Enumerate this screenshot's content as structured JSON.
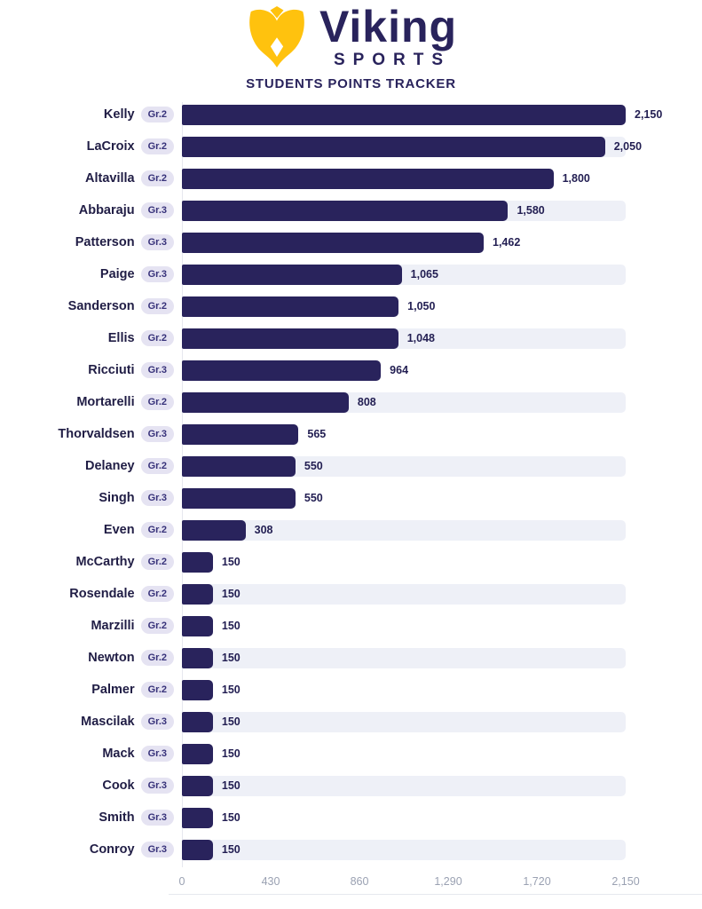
{
  "header": {
    "brand_name": "Viking",
    "brand_sub": "SPORTS",
    "title": "STUDENTS POINTS TRACKER"
  },
  "colors": {
    "bar": "#29235c",
    "track": "#eef0f7",
    "badge_bg": "#e5e3f2",
    "badge_text": "#37327a",
    "name_text": "#201d45",
    "value_text": "#221e52",
    "brand_navy": "#29235c",
    "brand_yellow": "#ffc20e",
    "axis_text": "#9aa1b2",
    "axis_line": "#e6e8ef"
  },
  "chart_data": {
    "type": "bar",
    "orientation": "horizontal",
    "title": "STUDENTS POINTS TRACKER",
    "xlim": [
      0,
      2150
    ],
    "grid": false,
    "legend": "none",
    "bar_color": "#29235c",
    "xticks": [
      {
        "label": "0",
        "value": 0
      },
      {
        "label": "430",
        "value": 430
      },
      {
        "label": "860",
        "value": 860
      },
      {
        "label": "1,290",
        "value": 1290
      },
      {
        "label": "1,720",
        "value": 1720
      },
      {
        "label": "2,150",
        "value": 2150
      }
    ],
    "students": [
      {
        "name": "Kelly",
        "grade": "Gr.2",
        "value": 2150,
        "label": "2,150"
      },
      {
        "name": "LaCroix",
        "grade": "Gr.2",
        "value": 2050,
        "label": "2,050"
      },
      {
        "name": "Altavilla",
        "grade": "Gr.2",
        "value": 1800,
        "label": "1,800"
      },
      {
        "name": "Abbaraju",
        "grade": "Gr.3",
        "value": 1580,
        "label": "1,580"
      },
      {
        "name": "Patterson",
        "grade": "Gr.3",
        "value": 1462,
        "label": "1,462"
      },
      {
        "name": "Paige",
        "grade": "Gr.3",
        "value": 1065,
        "label": "1,065"
      },
      {
        "name": "Sanderson",
        "grade": "Gr.2",
        "value": 1050,
        "label": "1,050"
      },
      {
        "name": "Ellis",
        "grade": "Gr.2",
        "value": 1048,
        "label": "1,048"
      },
      {
        "name": "Ricciuti",
        "grade": "Gr.3",
        "value": 964,
        "label": "964"
      },
      {
        "name": "Mortarelli",
        "grade": "Gr.2",
        "value": 808,
        "label": "808"
      },
      {
        "name": "Thorvaldsen",
        "grade": "Gr.3",
        "value": 565,
        "label": "565"
      },
      {
        "name": "Delaney",
        "grade": "Gr.2",
        "value": 550,
        "label": "550"
      },
      {
        "name": "Singh",
        "grade": "Gr.3",
        "value": 550,
        "label": "550"
      },
      {
        "name": "Even",
        "grade": "Gr.2",
        "value": 308,
        "label": "308"
      },
      {
        "name": "McCarthy",
        "grade": "Gr.2",
        "value": 150,
        "label": "150"
      },
      {
        "name": "Rosendale",
        "grade": "Gr.2",
        "value": 150,
        "label": "150"
      },
      {
        "name": "Marzilli",
        "grade": "Gr.2",
        "value": 150,
        "label": "150"
      },
      {
        "name": "Newton",
        "grade": "Gr.2",
        "value": 150,
        "label": "150"
      },
      {
        "name": "Palmer",
        "grade": "Gr.2",
        "value": 150,
        "label": "150"
      },
      {
        "name": "Mascilak",
        "grade": "Gr.3",
        "value": 150,
        "label": "150"
      },
      {
        "name": "Mack",
        "grade": "Gr.3",
        "value": 150,
        "label": "150"
      },
      {
        "name": "Cook",
        "grade": "Gr.3",
        "value": 150,
        "label": "150"
      },
      {
        "name": "Smith",
        "grade": "Gr.3",
        "value": 150,
        "label": "150"
      },
      {
        "name": "Conroy",
        "grade": "Gr.3",
        "value": 150,
        "label": "150"
      }
    ]
  }
}
